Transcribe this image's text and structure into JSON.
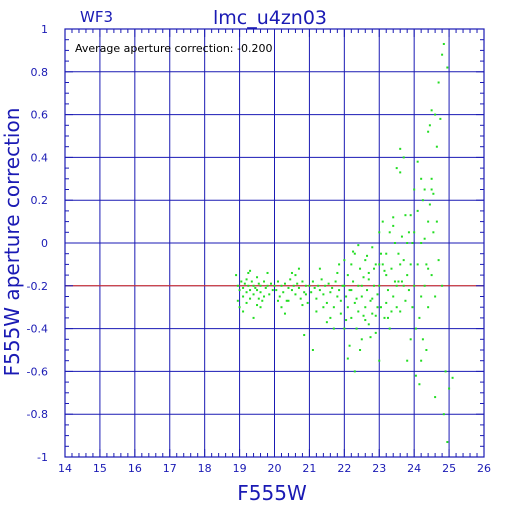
{
  "chart_data": {
    "type": "scatter",
    "panel_label": "WF3",
    "title": "lmc_u4zn03",
    "xlabel": "F555W",
    "ylabel": "F555W aperture correction",
    "annotation": "Average aperture correction: -0.200",
    "xlim": [
      14,
      26
    ],
    "ylim": [
      -1,
      1
    ],
    "x_ticks": [
      "14",
      "15",
      "16",
      "17",
      "18",
      "19",
      "20",
      "21",
      "22",
      "23",
      "24",
      "25",
      "26"
    ],
    "y_ticks": [
      "1",
      "0.8",
      "0.6",
      "0.4",
      "0.2",
      "0",
      "-0.2",
      "-0.4",
      "-0.6",
      "-0.8",
      "-1"
    ],
    "grid": true,
    "reference_line": {
      "y": -0.2,
      "color": "#e03020"
    },
    "colors": {
      "axes": "#1a1ab4",
      "points": "#22dd22",
      "reference": "#e03020"
    },
    "series": [
      {
        "points": [
          [
            18.9,
            -0.15
          ],
          [
            18.95,
            -0.2
          ],
          [
            19.0,
            -0.22
          ],
          [
            19.05,
            -0.18
          ],
          [
            19.1,
            -0.25
          ],
          [
            19.1,
            -0.21
          ],
          [
            19.15,
            -0.19
          ],
          [
            19.2,
            -0.23
          ],
          [
            19.2,
            -0.17
          ],
          [
            19.25,
            -0.2
          ],
          [
            19.3,
            -0.26
          ],
          [
            19.3,
            -0.22
          ],
          [
            19.35,
            -0.18
          ],
          [
            19.4,
            -0.2
          ],
          [
            19.4,
            -0.24
          ],
          [
            19.45,
            -0.21
          ],
          [
            19.5,
            -0.16
          ],
          [
            19.5,
            -0.22
          ],
          [
            19.55,
            -0.19
          ],
          [
            19.6,
            -0.23
          ],
          [
            19.6,
            -0.2
          ],
          [
            19.65,
            -0.27
          ],
          [
            19.7,
            -0.18
          ],
          [
            19.75,
            -0.21
          ],
          [
            19.8,
            -0.2
          ],
          [
            19.85,
            -0.24
          ],
          [
            19.9,
            -0.19
          ],
          [
            19.95,
            -0.22
          ],
          [
            19.0,
            -0.3
          ],
          [
            19.2,
            -0.28
          ],
          [
            19.4,
            -0.35
          ],
          [
            19.6,
            -0.3
          ],
          [
            19.3,
            -0.13
          ],
          [
            19.7,
            -0.25
          ],
          [
            19.1,
            -0.32
          ],
          [
            19.5,
            -0.29
          ],
          [
            19.8,
            -0.14
          ],
          [
            18.95,
            -0.27
          ],
          [
            19.25,
            -0.14
          ],
          [
            19.55,
            -0.26
          ],
          [
            20.0,
            -0.2
          ],
          [
            20.05,
            -0.22
          ],
          [
            20.1,
            -0.18
          ],
          [
            20.15,
            -0.25
          ],
          [
            20.2,
            -0.2
          ],
          [
            20.25,
            -0.23
          ],
          [
            20.3,
            -0.19
          ],
          [
            20.35,
            -0.27
          ],
          [
            20.4,
            -0.21
          ],
          [
            20.45,
            -0.17
          ],
          [
            20.5,
            -0.22
          ],
          [
            20.55,
            -0.2
          ],
          [
            20.6,
            -0.24
          ],
          [
            20.65,
            -0.19
          ],
          [
            20.7,
            -0.21
          ],
          [
            20.75,
            -0.26
          ],
          [
            20.8,
            -0.18
          ],
          [
            20.85,
            -0.23
          ],
          [
            20.9,
            -0.2
          ],
          [
            20.95,
            -0.28
          ],
          [
            20.2,
            -0.3
          ],
          [
            20.4,
            -0.27
          ],
          [
            20.6,
            -0.15
          ],
          [
            20.8,
            -0.29
          ],
          [
            20.3,
            -0.33
          ],
          [
            20.7,
            -0.12
          ],
          [
            20.1,
            -0.27
          ],
          [
            20.9,
            -0.24
          ],
          [
            20.5,
            -0.14
          ],
          [
            20.85,
            -0.43
          ],
          [
            21.0,
            -0.2
          ],
          [
            21.05,
            -0.23
          ],
          [
            21.1,
            -0.18
          ],
          [
            21.15,
            -0.21
          ],
          [
            21.2,
            -0.26
          ],
          [
            21.25,
            -0.2
          ],
          [
            21.3,
            -0.22
          ],
          [
            21.35,
            -0.17
          ],
          [
            21.4,
            -0.24
          ],
          [
            21.45,
            -0.2
          ],
          [
            21.5,
            -0.28
          ],
          [
            21.55,
            -0.19
          ],
          [
            21.6,
            -0.23
          ],
          [
            21.65,
            -0.21
          ],
          [
            21.7,
            -0.3
          ],
          [
            21.75,
            -0.18
          ],
          [
            21.8,
            -0.25
          ],
          [
            21.85,
            -0.22
          ],
          [
            21.9,
            -0.27
          ],
          [
            21.95,
            -0.2
          ],
          [
            21.2,
            -0.32
          ],
          [
            21.4,
            -0.3
          ],
          [
            21.6,
            -0.35
          ],
          [
            21.8,
            -0.14
          ],
          [
            21.3,
            -0.12
          ],
          [
            21.7,
            -0.4
          ],
          [
            21.9,
            -0.33
          ],
          [
            21.1,
            -0.5
          ],
          [
            21.5,
            -0.37
          ],
          [
            21.85,
            -0.1
          ],
          [
            22.0,
            -0.2
          ],
          [
            22.05,
            -0.25
          ],
          [
            22.1,
            -0.15
          ],
          [
            22.1,
            -0.3
          ],
          [
            22.15,
            -0.22
          ],
          [
            22.2,
            -0.1
          ],
          [
            22.2,
            -0.35
          ],
          [
            22.25,
            -0.18
          ],
          [
            22.3,
            -0.28
          ],
          [
            22.3,
            -0.05
          ],
          [
            22.35,
            -0.4
          ],
          [
            22.4,
            -0.2
          ],
          [
            22.4,
            -0.32
          ],
          [
            22.45,
            -0.12
          ],
          [
            22.5,
            -0.25
          ],
          [
            22.5,
            -0.45
          ],
          [
            22.55,
            -0.16
          ],
          [
            22.6,
            -0.3
          ],
          [
            22.6,
            -0.08
          ],
          [
            22.65,
            -0.22
          ],
          [
            22.7,
            -0.38
          ],
          [
            22.7,
            -0.14
          ],
          [
            22.75,
            -0.27
          ],
          [
            22.8,
            -0.02
          ],
          [
            22.8,
            -0.33
          ],
          [
            22.85,
            -0.2
          ],
          [
            22.9,
            -0.42
          ],
          [
            22.9,
            -0.1
          ],
          [
            22.95,
            -0.24
          ],
          [
            22.05,
            -0.36
          ],
          [
            22.15,
            -0.48
          ],
          [
            22.25,
            -0.04
          ],
          [
            22.35,
            -0.26
          ],
          [
            22.45,
            -0.5
          ],
          [
            22.55,
            -0.34
          ],
          [
            22.65,
            -0.06
          ],
          [
            22.75,
            -0.44
          ],
          [
            22.85,
            -0.12
          ],
          [
            22.95,
            -0.3
          ],
          [
            22.0,
            -0.4
          ],
          [
            22.1,
            -0.54
          ],
          [
            22.3,
            -0.6
          ],
          [
            22.5,
            -0.2
          ],
          [
            22.7,
            -0.17
          ],
          [
            22.0,
            -0.08
          ],
          [
            22.4,
            -0.01
          ],
          [
            22.6,
            -0.36
          ],
          [
            22.8,
            -0.26
          ],
          [
            22.9,
            -0.34
          ],
          [
            22.2,
            -0.22
          ],
          [
            23.0,
            -0.2
          ],
          [
            23.0,
            0.05
          ],
          [
            23.05,
            -0.3
          ],
          [
            23.1,
            -0.1
          ],
          [
            23.1,
            0.1
          ],
          [
            23.15,
            -0.35
          ],
          [
            23.2,
            -0.15
          ],
          [
            23.2,
            -0.05
          ],
          [
            23.25,
            -0.22
          ],
          [
            23.3,
            0.05
          ],
          [
            23.3,
            -0.4
          ],
          [
            23.35,
            -0.12
          ],
          [
            23.4,
            -0.25
          ],
          [
            23.45,
            0.0
          ],
          [
            23.5,
            -0.2
          ],
          [
            23.5,
            -0.3
          ],
          [
            23.55,
            -0.18
          ],
          [
            23.6,
            -0.1
          ],
          [
            23.6,
            -0.32
          ],
          [
            23.65,
            0.03
          ],
          [
            23.7,
            -0.2
          ],
          [
            23.7,
            -0.08
          ],
          [
            23.75,
            -0.27
          ],
          [
            23.8,
            -0.15
          ],
          [
            23.8,
            0.0
          ],
          [
            23.85,
            -0.22
          ],
          [
            23.9,
            -0.1
          ],
          [
            23.95,
            -0.3
          ],
          [
            23.05,
            -0.05
          ],
          [
            23.25,
            -0.35
          ],
          [
            23.4,
            0.08
          ],
          [
            23.55,
            -0.05
          ],
          [
            23.9,
            0.13
          ],
          [
            23.95,
            0.0
          ],
          [
            23.9,
            -0.45
          ],
          [
            23.5,
            0.35
          ],
          [
            23.6,
            0.33
          ],
          [
            23.7,
            0.4
          ],
          [
            23.4,
            0.12
          ],
          [
            23.6,
            0.44
          ],
          [
            23.0,
            -0.55
          ],
          [
            23.15,
            -0.13
          ],
          [
            23.35,
            -0.32
          ],
          [
            23.8,
            -0.55
          ],
          [
            23.85,
            0.05
          ],
          [
            23.65,
            -0.18
          ],
          [
            23.75,
            0.13
          ],
          [
            23.45,
            -0.18
          ],
          [
            23.2,
            -0.28
          ],
          [
            23.0,
            -0.1
          ],
          [
            24.0,
            -0.2
          ],
          [
            24.0,
            0.05
          ],
          [
            24.05,
            -0.4
          ],
          [
            24.1,
            -0.1
          ],
          [
            24.1,
            0.15
          ],
          [
            24.15,
            -0.35
          ],
          [
            24.2,
            0.0
          ],
          [
            24.2,
            -0.55
          ],
          [
            24.25,
            0.2
          ],
          [
            24.3,
            -0.2
          ],
          [
            24.3,
            0.25
          ],
          [
            24.35,
            -0.1
          ],
          [
            24.4,
            0.1
          ],
          [
            24.4,
            -0.3
          ],
          [
            24.45,
            0.18
          ],
          [
            24.5,
            -0.15
          ],
          [
            24.5,
            0.3
          ],
          [
            24.55,
            0.05
          ],
          [
            24.6,
            -0.25
          ],
          [
            24.6,
            0.6
          ],
          [
            24.65,
            0.45
          ],
          [
            24.7,
            -0.08
          ],
          [
            24.7,
            0.75
          ],
          [
            24.75,
            0.58
          ],
          [
            24.8,
            0.88
          ],
          [
            24.8,
            -0.2
          ],
          [
            24.85,
            0.93
          ],
          [
            24.9,
            -0.6
          ],
          [
            24.95,
            0.82
          ],
          [
            24.4,
            0.52
          ],
          [
            24.45,
            0.55
          ],
          [
            24.5,
            0.25
          ],
          [
            24.55,
            0.23
          ],
          [
            24.2,
            0.3
          ],
          [
            24.15,
            -0.66
          ],
          [
            24.05,
            -0.62
          ],
          [
            24.35,
            -0.5
          ],
          [
            24.0,
            0.25
          ],
          [
            24.25,
            -0.45
          ],
          [
            24.3,
            0.02
          ],
          [
            24.6,
            -0.72
          ],
          [
            24.85,
            -0.8
          ],
          [
            24.95,
            -0.93
          ],
          [
            25.1,
            -0.63
          ],
          [
            25.0,
            -0.68
          ],
          [
            24.1,
            0.38
          ],
          [
            24.5,
            0.62
          ],
          [
            24.2,
            -0.25
          ],
          [
            24.4,
            -0.12
          ],
          [
            24.65,
            0.1
          ]
        ]
      }
    ]
  }
}
